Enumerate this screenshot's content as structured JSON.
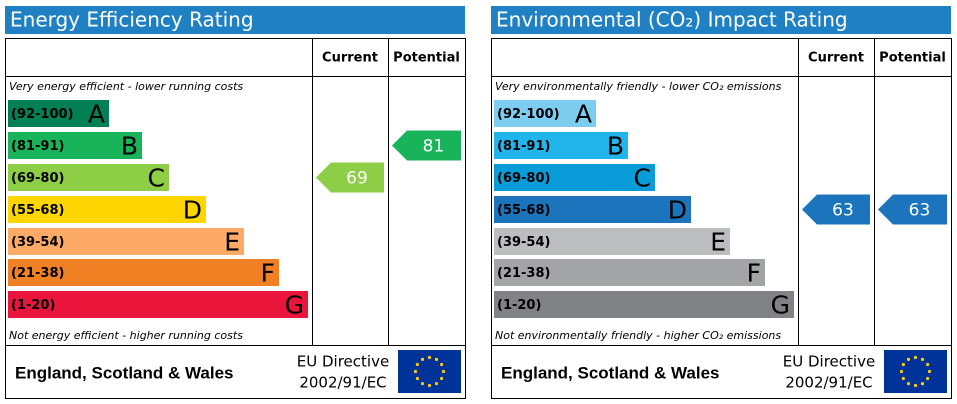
{
  "panels": [
    {
      "title": "Energy Efficiency Rating",
      "columns": [
        "Current",
        "Potential"
      ],
      "top_note": "Very energy efficient - lower running costs",
      "bottom_note": "Not energy efficient - higher running costs",
      "bands": [
        {
          "range": "(92-100)",
          "letter": "A",
          "color": "#008054"
        },
        {
          "range": "(81-91)",
          "letter": "B",
          "color": "#19b459"
        },
        {
          "range": "(69-80)",
          "letter": "C",
          "color": "#8dce46"
        },
        {
          "range": "(55-68)",
          "letter": "D",
          "color": "#ffd500"
        },
        {
          "range": "(39-54)",
          "letter": "E",
          "color": "#fcaa65"
        },
        {
          "range": "(21-38)",
          "letter": "F",
          "color": "#ef8023"
        },
        {
          "range": "(1-20)",
          "letter": "G",
          "color": "#e9153b"
        }
      ],
      "current": 69,
      "potential": 81,
      "footer": {
        "region": "England, Scotland & Wales",
        "directive": [
          "EU Directive",
          "2002/91/EC"
        ]
      }
    },
    {
      "title": "Environmental (CO₂) Impact Rating",
      "columns": [
        "Current",
        "Potential"
      ],
      "top_note": "Very environmentally friendly - lower CO₂ emissions",
      "bottom_note": "Not environmentally friendly - higher CO₂ emissions",
      "bands": [
        {
          "range": "(92-100)",
          "letter": "A",
          "color": "#7dcdf0"
        },
        {
          "range": "(81-91)",
          "letter": "B",
          "color": "#22b5eb"
        },
        {
          "range": "(69-80)",
          "letter": "C",
          "color": "#0a9cd8"
        },
        {
          "range": "(55-68)",
          "letter": "D",
          "color": "#1c75bc"
        },
        {
          "range": "(39-54)",
          "letter": "E",
          "color": "#bbbdbf"
        },
        {
          "range": "(21-38)",
          "letter": "F",
          "color": "#a2a4a6"
        },
        {
          "range": "(1-20)",
          "letter": "G",
          "color": "#818285"
        }
      ],
      "current": 63,
      "potential": 63,
      "footer": {
        "region": "England, Scotland & Wales",
        "directive": [
          "EU Directive",
          "2002/91/EC"
        ]
      }
    }
  ]
}
